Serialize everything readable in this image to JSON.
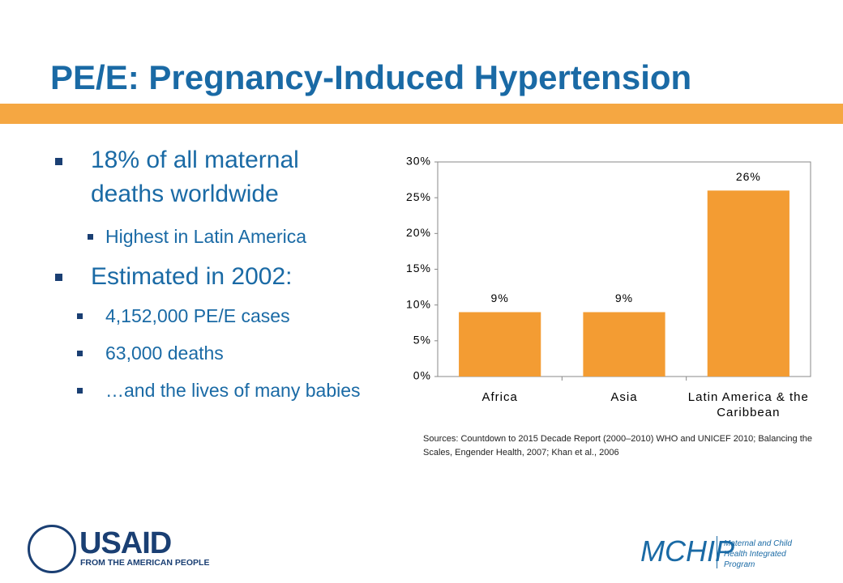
{
  "title": "PE/E: Pregnancy-Induced Hypertension",
  "bullets": [
    {
      "text": "18% of all maternal deaths worldwide",
      "sub": [
        "Highest in Latin America"
      ]
    },
    {
      "text": "Estimated in 2002:",
      "sub": [
        "4,152,000 PE/E cases",
        "63,000 deaths",
        "…and the lives of many babies"
      ]
    }
  ],
  "chart_data": {
    "type": "bar",
    "categories": [
      "Africa",
      "Asia",
      "Latin America & the Caribbean"
    ],
    "values": [
      9,
      9,
      26
    ],
    "value_labels": [
      "9%",
      "9%",
      "26%"
    ],
    "color": "#f39c33",
    "ylim": [
      0,
      30
    ],
    "yticks": [
      {
        "value": 0,
        "label": "0%"
      },
      {
        "value": 5,
        "label": "5%"
      },
      {
        "value": 10,
        "label": "10%"
      },
      {
        "value": 15,
        "label": "15%"
      },
      {
        "value": 20,
        "label": "20%"
      },
      {
        "value": 25,
        "label": "25%"
      },
      {
        "value": 30,
        "label": "30%"
      }
    ],
    "grid": false
  },
  "sources": "Sources: Countdown to 2015 Decade Report (2000–2010) WHO and UNICEF 2010; Balancing the Scales, Engender Health, 2007; Khan et al., 2006",
  "logos": {
    "usaid": "USAID",
    "usaid_tagline": "FROM THE AMERICAN PEOPLE",
    "mchip": "MCHIP",
    "mchip_tagline": "Maternal and Child Health Integrated Program"
  }
}
